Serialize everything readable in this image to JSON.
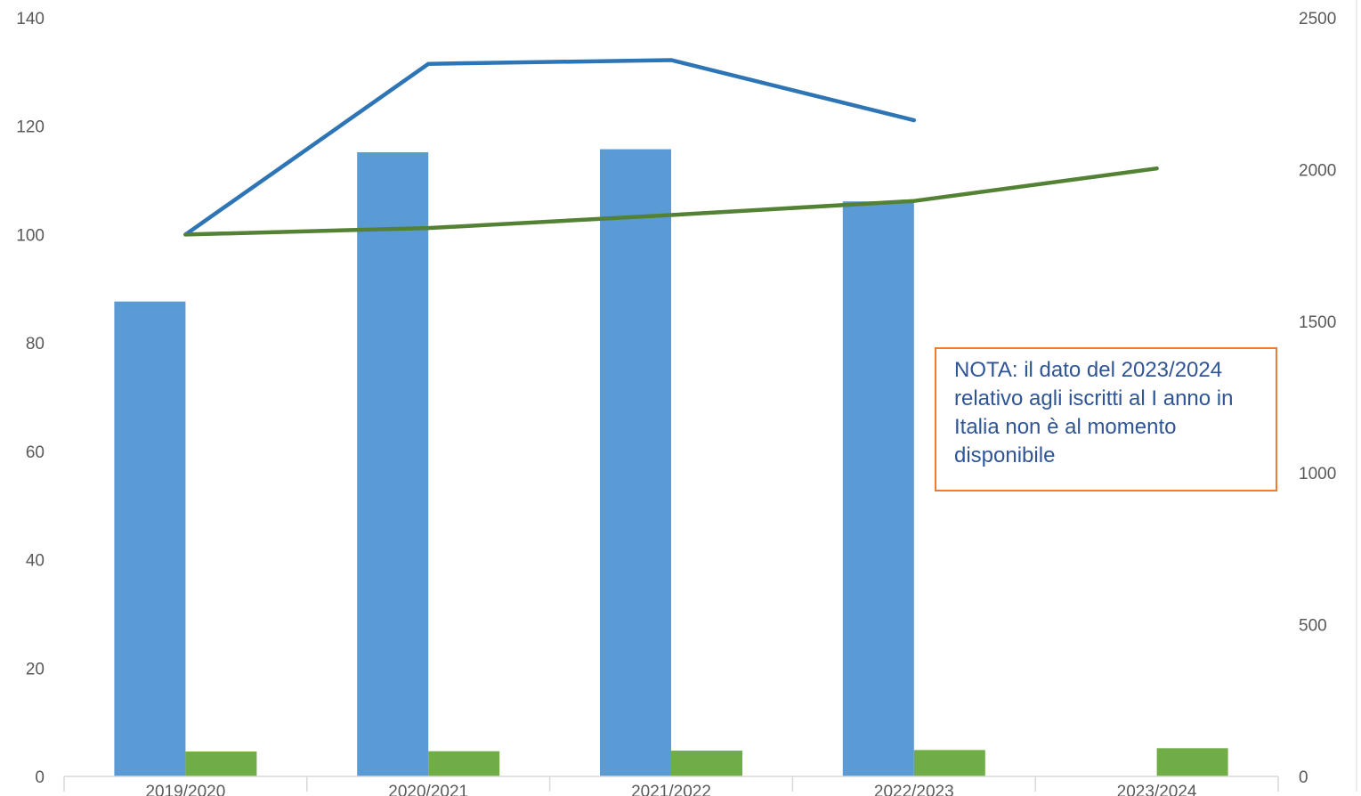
{
  "chart_data": {
    "type": "bar",
    "categories": [
      "2019/2020",
      "2020/2021",
      "2021/2022",
      "2022/2023",
      "2023/2024"
    ],
    "y_left": {
      "ticks": [
        0,
        20,
        40,
        60,
        80,
        100,
        120,
        140
      ],
      "ylim": [
        0,
        140
      ]
    },
    "y_right": {
      "ticks": [
        0,
        500,
        1000,
        1500,
        2000,
        2500
      ],
      "ylim": [
        0,
        2500
      ]
    },
    "bars": [
      {
        "axis": "right",
        "color": "#5b9bd5",
        "values": [
          1565,
          2057,
          2067,
          1895,
          null
        ]
      },
      {
        "axis": "right",
        "color": "#70ad47",
        "values": [
          82,
          83,
          85,
          87,
          93
        ]
      }
    ],
    "lines": [
      {
        "axis": "left",
        "color": "#2e75b6",
        "values": [
          100,
          131.5,
          132.2,
          121.1,
          null
        ]
      },
      {
        "axis": "left",
        "color": "#548235",
        "values": [
          100,
          101.2,
          103.6,
          106.2,
          112.2
        ]
      }
    ],
    "grid": false,
    "legend": "none"
  },
  "note": {
    "text": "NOTA: il dato del 2023/2024 relativo agli iscritti al I anno in Italia non è al momento disponibile"
  }
}
